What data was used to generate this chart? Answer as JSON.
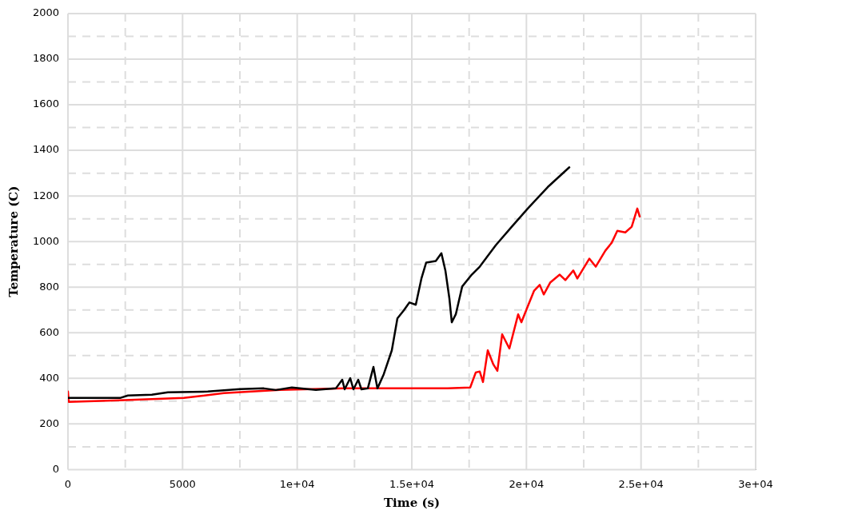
{
  "chart_data": {
    "type": "line",
    "xlabel": "Time (s)",
    "ylabel": "Temperature (C)",
    "xlim": [
      0,
      30000
    ],
    "ylim": [
      0,
      2000
    ],
    "xticks": [
      0,
      {
        "value": 2500,
        "label": null
      },
      5000,
      {
        "value": 7500,
        "label": null
      },
      {
        "value": 10000,
        "label": "1e+04"
      },
      {
        "value": 12500,
        "label": null
      },
      {
        "value": 15000,
        "label": "1.5e+04"
      },
      {
        "value": 17500,
        "label": null
      },
      {
        "value": 20000,
        "label": "2e+04"
      },
      {
        "value": 22500,
        "label": null
      },
      {
        "value": 25000,
        "label": "2.5e+04"
      },
      {
        "value": 27500,
        "label": null
      },
      {
        "value": 30000,
        "label": "3e+04"
      }
    ],
    "yticks": [
      0,
      {
        "value": 100,
        "label": null
      },
      200,
      {
        "value": 300,
        "label": null
      },
      400,
      {
        "value": 500,
        "label": null
      },
      600,
      {
        "value": 700,
        "label": null
      },
      800,
      {
        "value": 900,
        "label": null
      },
      1000,
      {
        "value": 1100,
        "label": null
      },
      1200,
      {
        "value": 1300,
        "label": null
      },
      1400,
      {
        "value": 1500,
        "label": null
      },
      1600,
      {
        "value": 1700,
        "label": null
      },
      1800,
      {
        "value": 1900,
        "label": null
      },
      2000
    ],
    "grid": true,
    "marker": "none",
    "line_style": "solid",
    "series": [
      {
        "color": "#000000",
        "x": [
          0,
          2270,
          2616,
          3660,
          4360,
          6100,
          7500,
          8546,
          9070,
          9767,
          10814,
          11686,
          11965,
          12070,
          12314,
          12453,
          12663,
          12802,
          13081,
          13326,
          13500,
          13779,
          14128,
          14372,
          14651,
          14895,
          15174,
          15419,
          15628,
          16047,
          16291,
          16465,
          16640,
          16744,
          16919,
          17198,
          17616,
          17965,
          18663,
          19360,
          20058,
          20930,
          21872
        ],
        "values": [
          314,
          314,
          325,
          328,
          339,
          342,
          353,
          356,
          349,
          360,
          349,
          356,
          394,
          352,
          401,
          352,
          394,
          352,
          356,
          450,
          356,
          419,
          523,
          663,
          698,
          733,
          723,
          838,
          908,
          915,
          949,
          873,
          750,
          646,
          681,
          803,
          855,
          890,
          984,
          1065,
          1145,
          1239,
          1326
        ]
      },
      {
        "color": "#ff0000",
        "x": [
          0,
          35,
          2267,
          5058,
          6802,
          9244,
          12035,
          14477,
          16570,
          17547,
          17791,
          17965,
          18105,
          18314,
          18558,
          18733,
          18942,
          19256,
          19640,
          19779,
          20058,
          20337,
          20581,
          20756,
          21035,
          21453,
          21698,
          22046,
          22221,
          22744,
          23023,
          23442,
          23721,
          23965,
          24314,
          24593,
          24837,
          24942
        ],
        "values": [
          342,
          297,
          304,
          314,
          335,
          349,
          356,
          356,
          356,
          360,
          426,
          430,
          384,
          523,
          461,
          433,
          593,
          531,
          681,
          646,
          716,
          785,
          810,
          768,
          820,
          855,
          831,
          873,
          838,
          925,
          890,
          960,
          995,
          1047,
          1040,
          1065,
          1145,
          1110
        ]
      }
    ]
  }
}
